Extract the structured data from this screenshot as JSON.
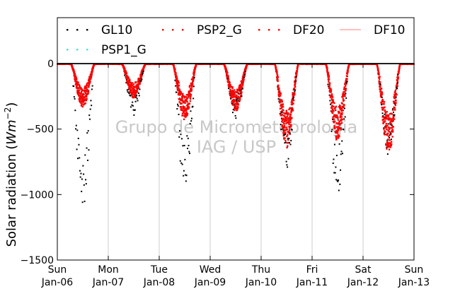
{
  "chart_data": {
    "type": "scatter",
    "title": "",
    "xlabel": "",
    "ylabel": "Solar radiation (Wm⁻²)",
    "ylabel_parts": {
      "text": "Solar radiation (",
      "unit": "Wm",
      "exp": "−2",
      "close": ")"
    },
    "xlim": [
      "2014-01-06 00:00",
      "2014-01-13 00:00"
    ],
    "ylim": [
      -1500,
      0
    ],
    "y_ticks": [
      {
        "value": 0,
        "label": "0"
      },
      {
        "value": -500,
        "label": "−500"
      },
      {
        "value": -1000,
        "label": "−1000"
      },
      {
        "value": -1500,
        "label": "−1500"
      }
    ],
    "x_ticks": [
      {
        "day": 0,
        "line1": "Sun",
        "line2": "Jan-06"
      },
      {
        "day": 1,
        "line1": "Mon",
        "line2": "Jan-07"
      },
      {
        "day": 2,
        "line1": "Tue",
        "line2": "Jan-08"
      },
      {
        "day": 3,
        "line1": "Wed",
        "line2": "Jan-09"
      },
      {
        "day": 4,
        "line1": "Thu",
        "line2": "Jan-10"
      },
      {
        "day": 5,
        "line1": "Fri",
        "line2": "Jan-11"
      },
      {
        "day": 6,
        "line1": "Sat",
        "line2": "Jan-12"
      },
      {
        "day": 7,
        "line1": "Sun",
        "line2": "Jan-13"
      }
    ],
    "grid": "vertical",
    "legend_position": "top",
    "watermark": [
      "Grupo de Micrometeorologia",
      "IAG / USP"
    ],
    "series": [
      {
        "name": "GL10",
        "style": "dots",
        "color": "#000000",
        "daily_min": [
          -1130,
          -400,
          -970,
          -420,
          -800,
          -990,
          -700
        ]
      },
      {
        "name": "PSP2_G",
        "style": "dots",
        "color": "#e01010",
        "daily_min": [
          -330,
          -260,
          -430,
          -360,
          -640,
          -600,
          -680
        ]
      },
      {
        "name": "DF20",
        "style": "dots",
        "color": "#ff0000",
        "daily_min": [
          -300,
          -240,
          -400,
          -340,
          -600,
          -560,
          -640
        ]
      },
      {
        "name": "DF10",
        "style": "line",
        "color": "#ff8080",
        "values": []
      },
      {
        "name": "PSP1_G",
        "style": "dots",
        "color": "#40e0d0",
        "values": []
      }
    ]
  }
}
